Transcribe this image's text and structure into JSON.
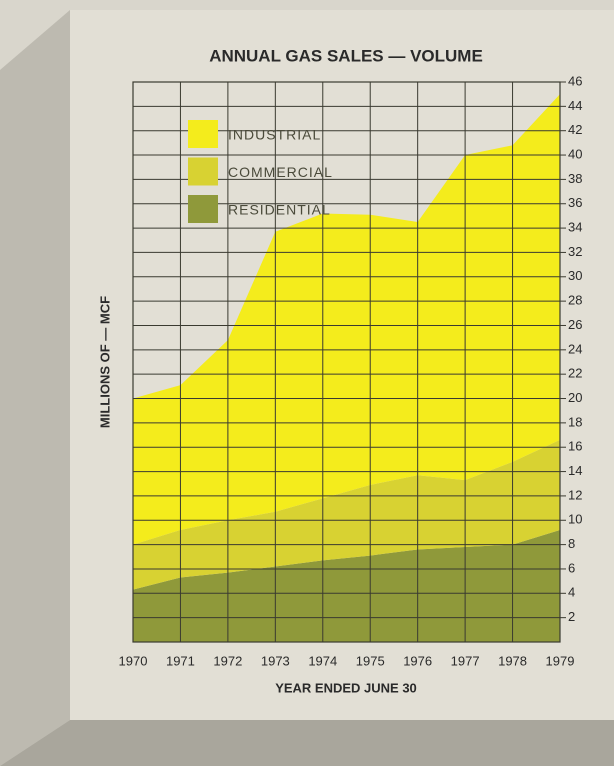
{
  "chart_data": {
    "type": "stacked_area",
    "title": "ANNUAL GAS SALES — VOLUME",
    "ylabel": "MILLIONS OF — MCF",
    "xlabel": "YEAR ENDED JUNE 30",
    "x": [
      1970,
      1971,
      1972,
      1973,
      1974,
      1975,
      1976,
      1977,
      1978,
      1979
    ],
    "xlim": [
      1970,
      1979
    ],
    "xticks": [
      1970,
      1971,
      1972,
      1973,
      1974,
      1975,
      1976,
      1977,
      1978,
      1979
    ],
    "ylim": [
      0,
      46
    ],
    "yticks": [
      2,
      4,
      6,
      8,
      10,
      12,
      14,
      16,
      18,
      20,
      22,
      24,
      26,
      28,
      30,
      32,
      34,
      36,
      38,
      40,
      42,
      44,
      46
    ],
    "grid": true,
    "series": [
      {
        "name": "INDUSTRIAL",
        "color": "#f4ec1c",
        "values": [
          12.0,
          11.9,
          14.8,
          23.0,
          23.4,
          22.2,
          20.8,
          26.7,
          26.0,
          28.4
        ]
      },
      {
        "name": "COMMERCIAL",
        "color": "#d8d232",
        "values": [
          3.7,
          3.9,
          4.3,
          4.5,
          5.1,
          5.8,
          6.1,
          5.5,
          6.8,
          7.4
        ]
      },
      {
        "name": "RESIDENTIAL",
        "color": "#8f993a",
        "values": [
          4.3,
          5.3,
          5.7,
          6.2,
          6.7,
          7.1,
          7.6,
          7.8,
          8.0,
          9.2
        ]
      }
    ]
  }
}
